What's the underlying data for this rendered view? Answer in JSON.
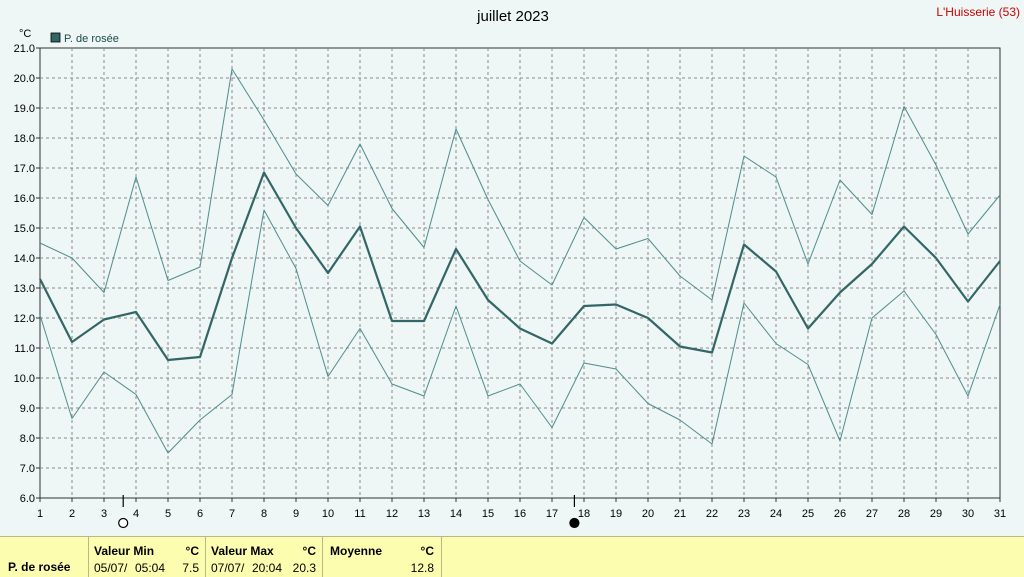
{
  "title": "juillet 2023",
  "station": "L'Huisserie (53)",
  "unit": "°C",
  "legend": {
    "label": "P. de rosée",
    "color": "#336666"
  },
  "chart_data": {
    "type": "line",
    "title": "juillet 2023",
    "ylabel": "°C",
    "xlabel": "",
    "ylim": [
      6.0,
      21.0
    ],
    "ytick_step": 1.0,
    "grid": true,
    "legend_position": "top-left",
    "x": [
      1,
      2,
      3,
      4,
      5,
      6,
      7,
      8,
      9,
      10,
      11,
      12,
      13,
      14,
      15,
      16,
      17,
      18,
      19,
      20,
      21,
      22,
      23,
      24,
      25,
      26,
      27,
      28,
      29,
      30,
      31
    ],
    "moon_phases": [
      {
        "day": 3.6,
        "phase": "full"
      },
      {
        "day": 17.7,
        "phase": "new"
      }
    ],
    "series": [
      {
        "name": "P. de rosée",
        "role": "mean",
        "color": "#336666",
        "values": [
          13.3,
          11.2,
          11.95,
          12.2,
          10.6,
          10.7,
          14.0,
          16.85,
          15.0,
          13.5,
          15.05,
          11.9,
          11.9,
          14.3,
          12.6,
          11.65,
          11.15,
          12.4,
          12.45,
          12.0,
          11.05,
          10.85,
          14.45,
          13.55,
          11.65,
          12.85,
          13.8,
          15.05,
          14.0,
          12.55,
          13.9
        ]
      },
      {
        "role": "max",
        "color": "#4f8d8d",
        "values": [
          14.5,
          14.0,
          12.85,
          16.7,
          13.25,
          13.7,
          20.3,
          18.6,
          16.8,
          15.75,
          17.8,
          15.65,
          14.35,
          18.3,
          15.95,
          13.9,
          13.1,
          15.35,
          14.3,
          14.65,
          13.4,
          12.6,
          17.4,
          16.7,
          13.8,
          16.6,
          15.45,
          19.05,
          17.1,
          14.8,
          16.1
        ]
      },
      {
        "role": "min",
        "color": "#4f8d8d",
        "values": [
          12.1,
          8.65,
          10.2,
          9.45,
          7.5,
          8.6,
          9.45,
          15.6,
          13.65,
          10.05,
          11.65,
          9.8,
          9.4,
          12.4,
          9.4,
          9.8,
          8.35,
          10.5,
          10.3,
          9.15,
          8.6,
          7.8,
          12.5,
          11.15,
          10.45,
          7.9,
          12.0,
          12.9,
          11.45,
          9.4,
          12.45
        ]
      }
    ]
  },
  "stats": {
    "row_label": "P. de rosée",
    "min": {
      "header": "Valeur Min",
      "unit": "°C",
      "date": "05/07/",
      "time": "05:04",
      "value": "7.5"
    },
    "max": {
      "header": "Valeur Max",
      "unit": "°C",
      "date": "07/07/",
      "time": "20:04",
      "value": "20.3"
    },
    "mean": {
      "header": "Moyenne",
      "unit": "°C",
      "value": "12.8"
    }
  }
}
